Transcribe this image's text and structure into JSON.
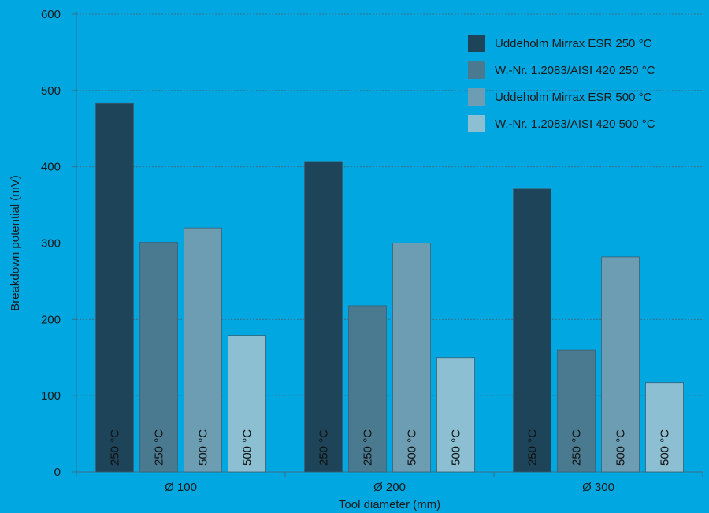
{
  "chart_data": {
    "type": "bar",
    "xlabel": "Tool diameter (mm)",
    "ylabel": "Breakdown potential (mV)",
    "ylim": [
      0,
      600
    ],
    "yticks": [
      0,
      100,
      200,
      300,
      400,
      500,
      600
    ],
    "categories": [
      "Ø 100",
      "Ø 200",
      "Ø 300"
    ],
    "grid": true,
    "legend_position": "top-right",
    "series": [
      {
        "name": "Uddeholm Mirrax ESR 250 °C",
        "bar_label": "250 °C",
        "color": "#1d4458",
        "values": [
          483,
          407,
          371
        ]
      },
      {
        "name": "W.-Nr. 1.2083/AISI 420 250 °C",
        "bar_label": "250 °C",
        "color": "#4a7a90",
        "values": [
          301,
          218,
          160
        ]
      },
      {
        "name": "Uddeholm Mirrax ESR 500 °C",
        "bar_label": "500 °C",
        "color": "#6c9db3",
        "values": [
          320,
          300,
          282
        ]
      },
      {
        "name": "W.-Nr. 1.2083/AISI 420 500 °C",
        "bar_label": "500 °C",
        "color": "#8dbfd3",
        "values": [
          179,
          150,
          117
        ]
      }
    ]
  },
  "colors": {
    "background": "#00a7e1",
    "grid": "#3a6f86",
    "axis": "#3a6f86",
    "text": "#1a1a1a"
  }
}
